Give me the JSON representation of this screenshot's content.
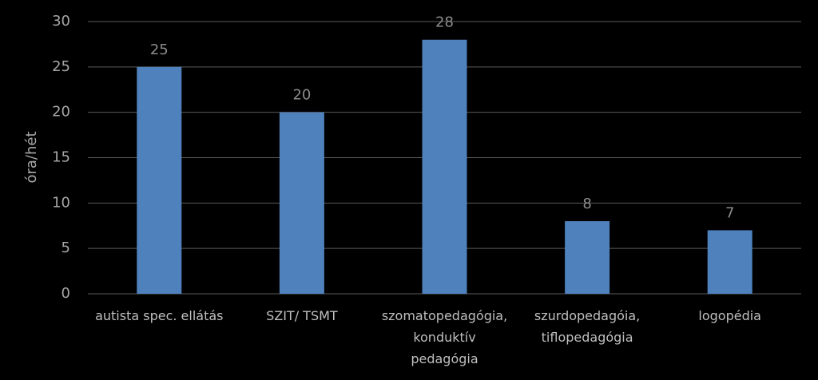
{
  "chart_data": {
    "type": "bar",
    "y_label": "óra/hét",
    "categories": [
      "autista spec. ellátás",
      "SZIT/ TSMT",
      "szomatopedagógia,\nkonduktív\npedagógia",
      "szurdopedagóia,\ntiflopedagógia",
      "logopédia"
    ],
    "values": [
      25,
      20,
      28,
      8,
      7
    ],
    "color": "#4f81bd",
    "ylim": [
      0,
      30
    ],
    "yticks": [
      0,
      5,
      10,
      15,
      20,
      25,
      30
    ],
    "grid": true
  }
}
